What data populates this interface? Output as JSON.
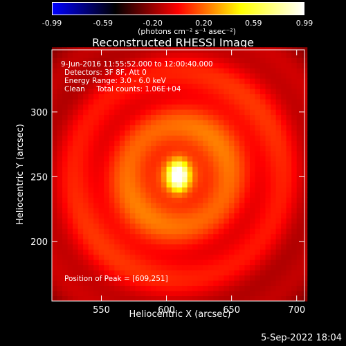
{
  "colorbar": {
    "ticks": [
      "-0.99",
      "-0.59",
      "-0.20",
      "0.20",
      "0.59",
      "0.99"
    ],
    "units": "(photons cm⁻² s⁻¹ asec⁻²)"
  },
  "chart_data": {
    "type": "heatmap",
    "title": "Reconstructed RHESSI Image",
    "xlabel": "Heliocentric X (arcsec)",
    "ylabel": "Heliocentric Y (arcsec)",
    "x_ticks": [
      550,
      600,
      650,
      700
    ],
    "y_ticks": [
      200,
      250,
      300
    ],
    "xlim": [
      512,
      706
    ],
    "ylim": [
      154,
      348
    ],
    "peak": {
      "x": 609,
      "y": 251,
      "value": 0.99
    },
    "colormap": [
      "#0000ff",
      "#000000",
      "#ff0000",
      "#ffff00",
      "#ffffff"
    ],
    "colorbar_range": [
      -0.99,
      0.99
    ],
    "annotations": {
      "time": "9-Jun-2016 11:55:52.000 to 12:00:40.000",
      "detectors": "Detectors: 3F 8F, Att 0",
      "energy": "Energy Range: 3.0 - 6.0 keV",
      "clean": "Clean     Total counts: 1.06E+04",
      "peak_position": "Position of Peak = [609,251]"
    }
  },
  "footer": {
    "date": "5-Sep-2022 18:04"
  }
}
